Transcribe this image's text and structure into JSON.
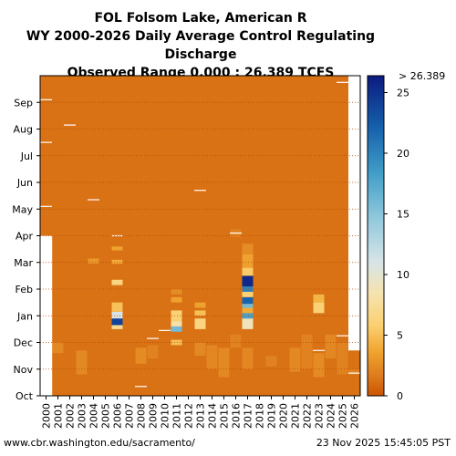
{
  "chart_data": {
    "type": "heatmap",
    "title": "FOL Folsom Lake, American R",
    "subtitle": "WY 2000-2026 Daily Average Control Regulating Discharge",
    "range_text": "Observed Range 0.000 : 26.389 TCFS",
    "x_categories": [
      "2000",
      "2001",
      "2002",
      "2003",
      "2004",
      "2005",
      "2006",
      "2007",
      "2008",
      "2009",
      "2010",
      "2011",
      "2012",
      "2013",
      "2014",
      "2015",
      "2016",
      "2017",
      "2018",
      "2019",
      "2020",
      "2021",
      "2022",
      "2023",
      "2024",
      "2025",
      "2026"
    ],
    "y_categories": [
      "Oct",
      "Nov",
      "Dec",
      "Jan",
      "Feb",
      "Mar",
      "Apr",
      "May",
      "Jun",
      "Jul",
      "Aug",
      "Sep"
    ],
    "colorbar": {
      "min": 0,
      "max": 26.389,
      "ticks": [
        0,
        5,
        10,
        15,
        20,
        25
      ],
      "max_label": "> 26.389"
    },
    "base_value": 1.2,
    "highlights": [
      {
        "year": "2001",
        "month_start": 1.6,
        "month_end": 2.0,
        "value": 2.3
      },
      {
        "year": "2003",
        "month_start": 0.8,
        "month_end": 1.7,
        "value": 2.3
      },
      {
        "year": "2004",
        "month_start": 4.95,
        "month_end": 5.15,
        "value": 3.0
      },
      {
        "year": "2006",
        "month_start": 2.5,
        "month_end": 2.65,
        "value": 7.0
      },
      {
        "year": "2006",
        "month_start": 2.65,
        "month_end": 2.9,
        "value": 24.0
      },
      {
        "year": "2006",
        "month_start": 2.9,
        "month_end": 3.15,
        "value": 11.0
      },
      {
        "year": "2006",
        "month_start": 3.15,
        "month_end": 3.5,
        "value": 5.0
      },
      {
        "year": "2006",
        "month_start": 4.15,
        "month_end": 4.35,
        "value": 6.5
      },
      {
        "year": "2006",
        "month_start": 4.95,
        "month_end": 5.1,
        "value": 4.0
      },
      {
        "year": "2006",
        "month_start": 5.45,
        "month_end": 5.6,
        "value": 3.5
      },
      {
        "year": "2008",
        "month_start": 1.2,
        "month_end": 1.8,
        "value": 2.4
      },
      {
        "year": "2009",
        "month_start": 1.4,
        "month_end": 1.9,
        "value": 2.0
      },
      {
        "year": "2011",
        "month_start": 1.9,
        "month_end": 2.1,
        "value": 5.0
      },
      {
        "year": "2011",
        "month_start": 2.4,
        "month_end": 2.6,
        "value": 16.0
      },
      {
        "year": "2011",
        "month_start": 2.6,
        "month_end": 2.8,
        "value": 8.0
      },
      {
        "year": "2011",
        "month_start": 2.8,
        "month_end": 3.2,
        "value": 6.0
      },
      {
        "year": "2011",
        "month_start": 3.5,
        "month_end": 3.7,
        "value": 3.5
      },
      {
        "year": "2011",
        "month_start": 3.8,
        "month_end": 4.0,
        "value": 2.5
      },
      {
        "year": "2013",
        "month_start": 1.5,
        "month_end": 2.0,
        "value": 2.3
      },
      {
        "year": "2013",
        "month_start": 2.5,
        "month_end": 2.9,
        "value": 6.5
      },
      {
        "year": "2013",
        "month_start": 3.0,
        "month_end": 3.2,
        "value": 5.0
      },
      {
        "year": "2013",
        "month_start": 3.3,
        "month_end": 3.5,
        "value": 3.5
      },
      {
        "year": "2014",
        "month_start": 1.0,
        "month_end": 1.9,
        "value": 2.2
      },
      {
        "year": "2015",
        "month_start": 0.7,
        "month_end": 1.8,
        "value": 2.3
      },
      {
        "year": "2016",
        "month_start": 1.8,
        "month_end": 2.3,
        "value": 2.0
      },
      {
        "year": "2016",
        "month_start": 5.95,
        "month_end": 6.25,
        "value": 2.0
      },
      {
        "year": "2017",
        "month_start": 2.5,
        "month_end": 2.9,
        "value": 9.0
      },
      {
        "year": "2017",
        "month_start": 2.9,
        "month_end": 3.1,
        "value": 18.0
      },
      {
        "year": "2017",
        "month_start": 3.1,
        "month_end": 3.3,
        "value": 4.0
      },
      {
        "year": "2017",
        "month_start": 3.3,
        "month_end": 3.45,
        "value": 16.0
      },
      {
        "year": "2017",
        "month_start": 3.45,
        "month_end": 3.7,
        "value": 22.0
      },
      {
        "year": "2017",
        "month_start": 3.7,
        "month_end": 3.9,
        "value": 6.0
      },
      {
        "year": "2017",
        "month_start": 3.9,
        "month_end": 4.1,
        "value": 20.0
      },
      {
        "year": "2017",
        "month_start": 4.1,
        "month_end": 4.5,
        "value": 25.5
      },
      {
        "year": "2017",
        "month_start": 4.5,
        "month_end": 4.8,
        "value": 5.5
      },
      {
        "year": "2017",
        "month_start": 4.8,
        "month_end": 5.3,
        "value": 3.5
      },
      {
        "year": "2017",
        "month_start": 5.3,
        "month_end": 5.7,
        "value": 2.5
      },
      {
        "year": "2017",
        "month_start": 1.0,
        "month_end": 1.8,
        "value": 2.2
      },
      {
        "year": "2019",
        "month_start": 1.1,
        "month_end": 1.5,
        "value": 2.0
      },
      {
        "year": "2021",
        "month_start": 0.9,
        "month_end": 1.8,
        "value": 2.3
      },
      {
        "year": "2022",
        "month_start": 1.0,
        "month_end": 2.3,
        "value": 2.0
      },
      {
        "year": "2023",
        "month_start": 0.7,
        "month_end": 1.6,
        "value": 2.4
      },
      {
        "year": "2023",
        "month_start": 3.1,
        "month_end": 3.5,
        "value": 6.0
      },
      {
        "year": "2023",
        "month_start": 3.5,
        "month_end": 3.8,
        "value": 4.5
      },
      {
        "year": "2024",
        "month_start": 1.4,
        "month_end": 2.3,
        "value": 2.2
      },
      {
        "year": "2025",
        "month_start": 0.8,
        "month_end": 2.0,
        "value": 2.0
      },
      {
        "year": "2026",
        "month_start": 0.8,
        "month_end": 1.0,
        "value": 2.0
      }
    ],
    "white_marks": [
      {
        "year": "2000",
        "month": 11.1
      },
      {
        "year": "2000",
        "month": 9.5
      },
      {
        "year": "2000",
        "month": 7.1
      },
      {
        "year": "2002",
        "month": 10.15
      },
      {
        "year": "2004",
        "month": 7.35
      },
      {
        "year": "2006",
        "month": 6.0
      },
      {
        "year": "2008",
        "month": 0.35
      },
      {
        "year": "2009",
        "month": 2.15
      },
      {
        "year": "2010",
        "month": 2.45
      },
      {
        "year": "2013",
        "month": 7.7
      },
      {
        "year": "2016",
        "month": 6.1
      },
      {
        "year": "2023",
        "month": 1.7
      },
      {
        "year": "2025",
        "month": 2.25
      },
      {
        "year": "2025",
        "month": 11.75
      },
      {
        "year": "2026",
        "month": 0.85
      }
    ],
    "no_data": [
      {
        "year": "2000",
        "month_start": 0,
        "month_end": 6
      },
      {
        "year": "2026",
        "month_start": 1.7,
        "month_end": 12
      }
    ]
  },
  "footer": {
    "left": "www.cbr.washington.edu/sacramento/",
    "right": "23 Nov 2025 15:45:05 PST"
  }
}
